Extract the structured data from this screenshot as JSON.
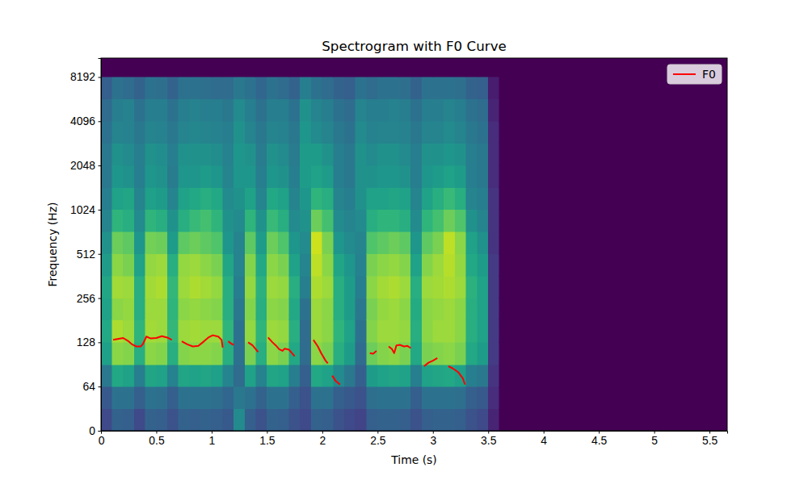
{
  "chart_data": {
    "type": "heatmap",
    "title": "Spectrogram with F0 Curve",
    "x_label": "Time (s)",
    "y_label": "Frequency (Hz)",
    "xlim": [
      0,
      5.66
    ],
    "ylim": [
      0,
      11025
    ],
    "xticks": [
      0,
      0.5,
      1,
      1.5,
      2,
      2.5,
      3,
      3.5,
      4,
      4.5,
      5,
      5.5
    ],
    "yticks": [
      0,
      64,
      128,
      256,
      512,
      1024,
      2048,
      4096,
      8192
    ],
    "log": "y",
    "legend": "upper right",
    "zlim": [
      -80,
      0
    ],
    "x_edges": [
      0,
      0.1,
      0.2,
      0.3,
      0.4,
      0.5,
      0.6,
      0.7,
      0.8,
      0.9,
      1.0,
      1.1,
      1.2,
      1.3,
      1.4,
      1.5,
      1.6,
      1.7,
      1.8,
      1.9,
      2.0,
      2.1,
      2.2,
      2.3,
      2.4,
      2.5,
      2.6,
      2.7,
      2.8,
      2.9,
      3.0,
      3.1,
      3.2,
      3.3,
      3.4,
      3.5,
      3.6,
      5.66
    ],
    "y_edges": [
      0,
      32,
      64,
      90,
      128,
      181,
      256,
      362,
      512,
      724,
      1024,
      1448,
      2048,
      2896,
      4096,
      5793,
      8192,
      11025
    ],
    "z": [
      [
        -62,
        -58,
        -48,
        -35,
        -32,
        -34,
        -33,
        -36,
        -40,
        -44,
        -46,
        -48,
        -48,
        -50,
        -52,
        -56,
        -80
      ],
      [
        -55,
        -50,
        -32,
        -14,
        -10,
        -14,
        -11,
        -14,
        -18,
        -28,
        -34,
        -38,
        -40,
        -44,
        -46,
        -50,
        -80
      ],
      [
        -56,
        -50,
        -34,
        -15,
        -12,
        -13,
        -12,
        -16,
        -20,
        -30,
        -33,
        -40,
        -42,
        -45,
        -45,
        -52,
        -80
      ],
      [
        -62,
        -56,
        -46,
        -30,
        -28,
        -30,
        -30,
        -34,
        -38,
        -42,
        -44,
        -46,
        -46,
        -48,
        -50,
        -55,
        -80
      ],
      [
        -55,
        -50,
        -33,
        -14,
        -11,
        -12,
        -11,
        -13,
        -17,
        -28,
        -35,
        -38,
        -40,
        -44,
        -46,
        -50,
        -80
      ],
      [
        -56,
        -51,
        -34,
        -15,
        -12,
        -12,
        -10,
        -12,
        -18,
        -30,
        -36,
        -40,
        -41,
        -45,
        -46,
        -51,
        -80
      ],
      [
        -60,
        -56,
        -45,
        -30,
        -27,
        -28,
        -27,
        -30,
        -36,
        -40,
        -44,
        -47,
        -46,
        -48,
        -50,
        -55,
        -80
      ],
      [
        -55,
        -50,
        -33,
        -15,
        -12,
        -14,
        -12,
        -13,
        -20,
        -30,
        -34,
        -38,
        -40,
        -44,
        -46,
        -50,
        -80
      ],
      [
        -56,
        -50,
        -34,
        -14,
        -11,
        -13,
        -10,
        -12,
        -18,
        -26,
        -32,
        -38,
        -40,
        -43,
        -45,
        -50,
        -80
      ],
      [
        -55,
        -50,
        -33,
        -14,
        -12,
        -14,
        -11,
        -14,
        -20,
        -24,
        -30,
        -36,
        -40,
        -44,
        -46,
        -51,
        -80
      ],
      [
        -56,
        -51,
        -35,
        -15,
        -12,
        -15,
        -13,
        -16,
        -22,
        -28,
        -32,
        -38,
        -41,
        -45,
        -46,
        -52,
        -80
      ],
      [
        -58,
        -54,
        -44,
        -30,
        -28,
        -30,
        -30,
        -33,
        -38,
        -40,
        -42,
        -44,
        -45,
        -46,
        -48,
        -52,
        -80
      ],
      [
        -42,
        -48,
        -52,
        -50,
        -50,
        -48,
        -46,
        -44,
        -44,
        -42,
        -40,
        -38,
        -38,
        -40,
        -42,
        -48,
        -80
      ],
      [
        -56,
        -50,
        -34,
        -16,
        -13,
        -15,
        -13,
        -15,
        -20,
        -28,
        -34,
        -38,
        -40,
        -44,
        -46,
        -50,
        -80
      ],
      [
        -60,
        -55,
        -45,
        -30,
        -28,
        -30,
        -29,
        -32,
        -36,
        -40,
        -44,
        -46,
        -47,
        -48,
        -50,
        -54,
        -80
      ],
      [
        -55,
        -50,
        -33,
        -14,
        -12,
        -14,
        -12,
        -14,
        -18,
        -26,
        -32,
        -38,
        -40,
        -44,
        -46,
        -50,
        -80
      ],
      [
        -56,
        -50,
        -34,
        -16,
        -13,
        -15,
        -13,
        -16,
        -22,
        -30,
        -34,
        -40,
        -42,
        -45,
        -46,
        -52,
        -80
      ],
      [
        -60,
        -56,
        -46,
        -32,
        -30,
        -32,
        -30,
        -34,
        -38,
        -42,
        -44,
        -46,
        -47,
        -48,
        -50,
        -55,
        -80
      ],
      [
        -62,
        -60,
        -56,
        -52,
        -52,
        -50,
        -46,
        -44,
        -42,
        -40,
        -38,
        -36,
        -36,
        -38,
        -40,
        -46,
        -80
      ],
      [
        -55,
        -50,
        -32,
        -14,
        -12,
        -12,
        -10,
        -8,
        -6,
        -18,
        -28,
        -34,
        -36,
        -42,
        -44,
        -50,
        -80
      ],
      [
        -56,
        -50,
        -34,
        -16,
        -14,
        -14,
        -12,
        -14,
        -16,
        -24,
        -30,
        -36,
        -40,
        -44,
        -46,
        -52,
        -80
      ],
      [
        -60,
        -56,
        -42,
        -30,
        -28,
        -30,
        -30,
        -33,
        -38,
        -42,
        -44,
        -46,
        -46,
        -48,
        -50,
        -55,
        -80
      ],
      [
        -62,
        -58,
        -48,
        -36,
        -34,
        -36,
        -36,
        -38,
        -42,
        -44,
        -46,
        -48,
        -48,
        -50,
        -52,
        -56,
        -80
      ],
      [
        -64,
        -60,
        -56,
        -52,
        -50,
        -48,
        -46,
        -45,
        -44,
        -42,
        -40,
        -40,
        -40,
        -42,
        -44,
        -50,
        -80
      ],
      [
        -56,
        -51,
        -36,
        -18,
        -15,
        -16,
        -14,
        -16,
        -22,
        -30,
        -34,
        -40,
        -42,
        -45,
        -46,
        -52,
        -80
      ],
      [
        -55,
        -50,
        -34,
        -15,
        -12,
        -13,
        -11,
        -14,
        -20,
        -28,
        -34,
        -38,
        -40,
        -44,
        -46,
        -50,
        -80
      ],
      [
        -55,
        -50,
        -33,
        -14,
        -12,
        -12,
        -10,
        -13,
        -18,
        -28,
        -33,
        -38,
        -40,
        -44,
        -45,
        -50,
        -80
      ],
      [
        -56,
        -50,
        -34,
        -16,
        -13,
        -14,
        -12,
        -15,
        -20,
        -30,
        -34,
        -40,
        -42,
        -45,
        -46,
        -51,
        -80
      ],
      [
        -60,
        -56,
        -46,
        -32,
        -30,
        -31,
        -30,
        -34,
        -38,
        -42,
        -44,
        -46,
        -46,
        -48,
        -50,
        -55,
        -80
      ],
      [
        -56,
        -50,
        -34,
        -16,
        -14,
        -14,
        -12,
        -15,
        -20,
        -28,
        -34,
        -38,
        -40,
        -44,
        -46,
        -50,
        -80
      ],
      [
        -55,
        -50,
        -33,
        -15,
        -12,
        -13,
        -11,
        -12,
        -16,
        -24,
        -30,
        -36,
        -40,
        -44,
        -46,
        -50,
        -80
      ],
      [
        -55,
        -50,
        -32,
        -14,
        -12,
        -12,
        -10,
        -9,
        -8,
        -18,
        -26,
        -34,
        -38,
        -42,
        -44,
        -50,
        -80
      ],
      [
        -56,
        -51,
        -35,
        -16,
        -14,
        -14,
        -12,
        -13,
        -14,
        -22,
        -30,
        -36,
        -40,
        -44,
        -46,
        -51,
        -80
      ],
      [
        -60,
        -56,
        -46,
        -32,
        -30,
        -30,
        -29,
        -32,
        -34,
        -40,
        -44,
        -46,
        -46,
        -48,
        -50,
        -55,
        -80
      ],
      [
        -62,
        -58,
        -48,
        -36,
        -34,
        -34,
        -34,
        -36,
        -40,
        -44,
        -46,
        -48,
        -48,
        -50,
        -52,
        -56,
        -80
      ],
      [
        -72,
        -70,
        -68,
        -66,
        -66,
        -66,
        -66,
        -66,
        -68,
        -68,
        -68,
        -70,
        -70,
        -70,
        -72,
        -74,
        -80
      ],
      [
        -80,
        -80,
        -80,
        -80,
        -80,
        -80,
        -80,
        -80,
        -80,
        -80,
        -80,
        -80,
        -80,
        -80,
        -80,
        -80,
        -80
      ]
    ],
    "series": [
      {
        "name": "F0",
        "type": "line",
        "color": "#ff0000",
        "x": [
          0.11,
          0.15,
          0.2,
          0.25,
          0.28,
          0.32,
          0.36,
          0.38,
          0.41,
          0.45,
          0.5,
          0.55,
          0.6,
          0.64,
          0.69,
          0.73,
          0.78,
          0.83,
          0.88,
          0.92,
          0.97,
          1.01,
          1.06,
          1.09,
          1.1,
          1.12,
          1.15,
          1.18,
          1.2,
          1.27,
          1.33,
          1.37,
          1.42,
          1.47,
          1.51,
          1.55,
          1.58,
          1.61,
          1.64,
          1.66,
          1.7,
          1.75,
          1.84,
          1.92,
          1.96,
          1.99,
          2.03,
          2.05,
          2.07,
          2.09,
          2.12,
          2.16,
          2.3,
          2.43,
          2.46,
          2.49,
          2.55,
          2.6,
          2.63,
          2.65,
          2.67,
          2.7,
          2.74,
          2.77,
          2.8,
          2.86,
          2.92,
          2.96,
          3.0,
          3.04,
          3.09,
          3.14,
          3.18,
          3.23,
          3.27,
          3.29
        ],
        "values": [
          133,
          135,
          137,
          130,
          124,
          120,
          120,
          125,
          140,
          136,
          137,
          141,
          138,
          133,
          null,
          130,
          124,
          120,
          121,
          128,
          138,
          143,
          140,
          133,
          118,
          null,
          130,
          125,
          123,
          null,
          128,
          122,
          110,
          null,
          138,
          128,
          122,
          115,
          112,
          116,
          114,
          103,
          null,
          133,
          120,
          108,
          96,
          92,
          null,
          76,
          70,
          66,
          null,
          108,
          107,
          112,
          null,
          120,
          115,
          108,
          122,
          123,
          120,
          121,
          117,
          null,
          88,
          93,
          96,
          100,
          null,
          88,
          85,
          80,
          73,
          66
        ]
      }
    ]
  }
}
